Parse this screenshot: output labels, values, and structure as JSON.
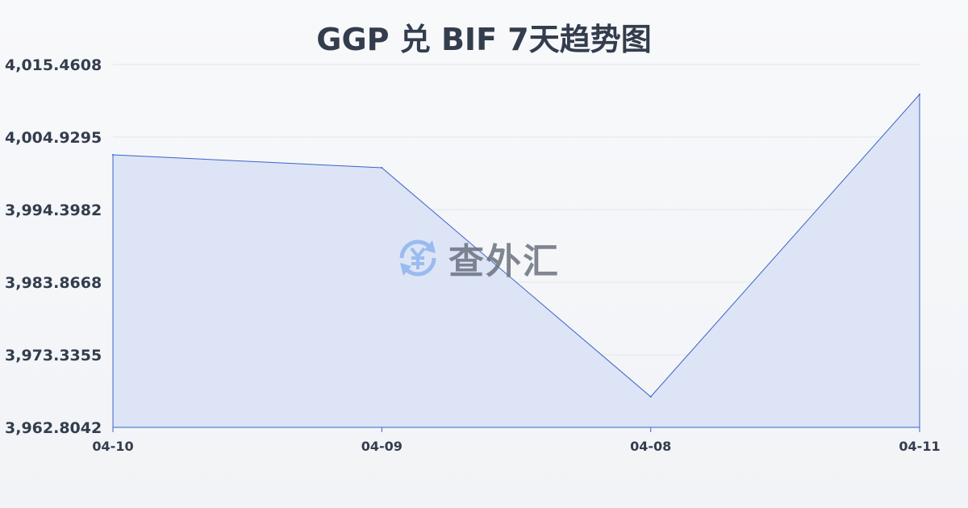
{
  "title": "GGP 兑 BIF 7天趋势图",
  "watermark": {
    "text": "查外汇",
    "icon": "yen-exchange-icon"
  },
  "colors": {
    "line": "#3a64c8",
    "fill": "#dae3f6",
    "grid": "#e3e6ea",
    "text": "#333d4d"
  },
  "chart_data": {
    "type": "area",
    "title": "GGP 兑 BIF 7天趋势图",
    "categories": [
      "04-10",
      "04-09",
      "04-08",
      "04-11"
    ],
    "values": [
      4002.35,
      4000.48,
      3967.25,
      4011.13
    ],
    "ylim": [
      3962.8042,
      4015.4608
    ],
    "yticks": [
      "4,015.4608",
      "4,004.9295",
      "3,994.3982",
      "3,983.8668",
      "3,973.3355",
      "3,962.8042"
    ],
    "grid": true
  }
}
